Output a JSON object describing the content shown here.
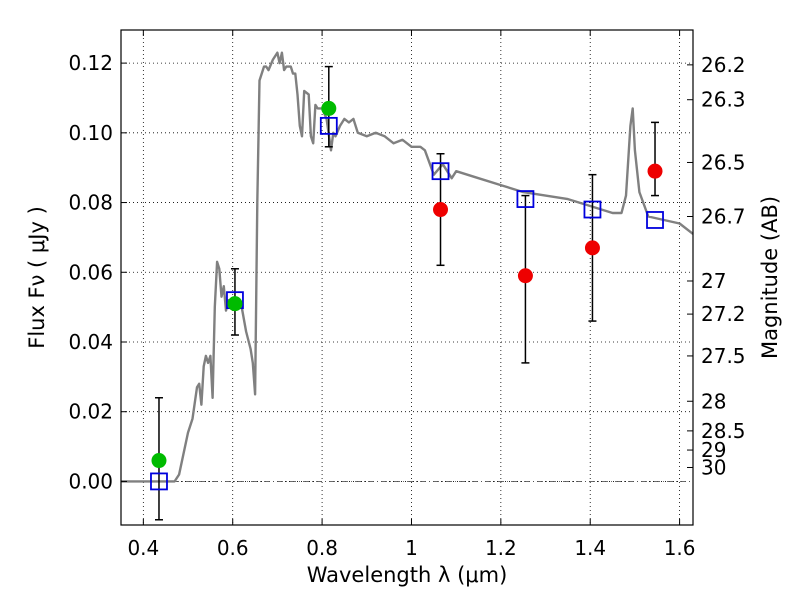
{
  "chart_data": {
    "type": "scatter",
    "xlabel": "Wavelength  λ (μm)",
    "ylabel": "Flux  Fν  ( μJy )",
    "ylabel_right": "Magnitude (AB)",
    "xlim": [
      0.35,
      1.63
    ],
    "ylim": [
      -0.0125,
      0.1295
    ],
    "grid": true,
    "grid_style": "dotted",
    "x_ticks": [
      {
        "value": 0.4,
        "label": "0.4"
      },
      {
        "value": 0.6,
        "label": "0.6"
      },
      {
        "value": 0.8,
        "label": "0.8"
      },
      {
        "value": 1.0,
        "label": "1"
      },
      {
        "value": 1.2,
        "label": "1.2"
      },
      {
        "value": 1.4,
        "label": "1.4"
      },
      {
        "value": 1.6,
        "label": "1.6"
      }
    ],
    "y_ticks": [
      {
        "value": 0.0,
        "label": "0.00"
      },
      {
        "value": 0.02,
        "label": "0.02"
      },
      {
        "value": 0.04,
        "label": "0.04"
      },
      {
        "value": 0.06,
        "label": "0.06"
      },
      {
        "value": 0.08,
        "label": "0.08"
      },
      {
        "value": 0.1,
        "label": "0.10"
      },
      {
        "value": 0.12,
        "label": "0.12"
      }
    ],
    "right_ticks": [
      {
        "flux": 0.1195,
        "label": "26.2"
      },
      {
        "flux": 0.1095,
        "label": "26.3"
      },
      {
        "flux": 0.0915,
        "label": "26.5"
      },
      {
        "flux": 0.076,
        "label": "26.7"
      },
      {
        "flux": 0.0575,
        "label": "27"
      },
      {
        "flux": 0.048,
        "label": "27.2"
      },
      {
        "flux": 0.036,
        "label": "27.5"
      },
      {
        "flux": 0.023,
        "label": "28"
      },
      {
        "flux": 0.0145,
        "label": "28.5"
      },
      {
        "flux": 0.009,
        "label": "29"
      },
      {
        "flux": 0.004,
        "label": "30"
      }
    ],
    "zero_line": 0.0,
    "series": [
      {
        "kind": "line",
        "color": "#808080",
        "x": [
          0.35,
          0.47,
          0.48,
          0.5,
          0.51,
          0.52,
          0.525,
          0.53,
          0.535,
          0.54,
          0.545,
          0.55,
          0.555,
          0.56,
          0.565,
          0.57,
          0.575,
          0.58,
          0.585,
          0.59,
          0.6,
          0.61,
          0.62,
          0.63,
          0.64,
          0.645,
          0.65,
          0.655,
          0.66,
          0.67,
          0.675,
          0.68,
          0.69,
          0.7,
          0.705,
          0.71,
          0.715,
          0.72,
          0.73,
          0.735,
          0.74,
          0.745,
          0.75,
          0.755,
          0.76,
          0.77,
          0.775,
          0.78,
          0.785,
          0.79,
          0.8,
          0.81,
          0.82,
          0.825,
          0.83,
          0.84,
          0.85,
          0.86,
          0.87,
          0.88,
          0.9,
          0.92,
          0.94,
          0.96,
          0.98,
          0.99,
          1.0,
          1.02,
          1.03,
          1.05,
          1.07,
          1.09,
          1.1,
          1.15,
          1.2,
          1.25,
          1.3,
          1.35,
          1.4,
          1.45,
          1.47,
          1.48,
          1.49,
          1.495,
          1.5,
          1.51,
          1.53,
          1.6,
          1.63
        ],
        "y": [
          0.0,
          0.0,
          0.002,
          0.014,
          0.018,
          0.027,
          0.028,
          0.022,
          0.033,
          0.036,
          0.034,
          0.036,
          0.024,
          0.05,
          0.063,
          0.061,
          0.053,
          0.056,
          0.049,
          0.052,
          0.052,
          0.05,
          0.05,
          0.043,
          0.038,
          0.034,
          0.025,
          0.08,
          0.115,
          0.119,
          0.119,
          0.118,
          0.121,
          0.123,
          0.12,
          0.123,
          0.118,
          0.119,
          0.119,
          0.117,
          0.117,
          0.111,
          0.102,
          0.099,
          0.112,
          0.111,
          0.099,
          0.097,
          0.108,
          0.107,
          0.107,
          0.104,
          0.095,
          0.1,
          0.099,
          0.102,
          0.104,
          0.103,
          0.104,
          0.1,
          0.099,
          0.1,
          0.099,
          0.097,
          0.098,
          0.097,
          0.096,
          0.096,
          0.095,
          0.088,
          0.091,
          0.087,
          0.089,
          0.087,
          0.085,
          0.083,
          0.082,
          0.081,
          0.079,
          0.077,
          0.077,
          0.082,
          0.102,
          0.107,
          0.095,
          0.083,
          0.076,
          0.074,
          0.071
        ]
      },
      {
        "kind": "markers",
        "marker": "square-open",
        "color": "#0000dd",
        "x": [
          0.435,
          0.605,
          0.815,
          1.065,
          1.255,
          1.405,
          1.545
        ],
        "y": [
          0.0,
          0.052,
          0.102,
          0.089,
          0.081,
          0.078,
          0.075
        ]
      },
      {
        "kind": "markers",
        "marker": "circle",
        "color": "#00bb00",
        "x": [
          0.435,
          0.605,
          0.815
        ],
        "y": [
          0.006,
          0.051,
          0.107
        ],
        "err_low": [
          -0.011,
          0.042,
          0.096
        ],
        "err_high": [
          0.024,
          0.061,
          0.119
        ]
      },
      {
        "kind": "markers",
        "marker": "circle",
        "color": "#ee0000",
        "x": [
          1.065,
          1.255,
          1.405,
          1.545
        ],
        "y": [
          0.078,
          0.059,
          0.067,
          0.089
        ],
        "err_low": [
          0.062,
          0.034,
          0.046,
          0.082
        ],
        "err_high": [
          0.094,
          0.082,
          0.088,
          0.103
        ]
      }
    ]
  }
}
